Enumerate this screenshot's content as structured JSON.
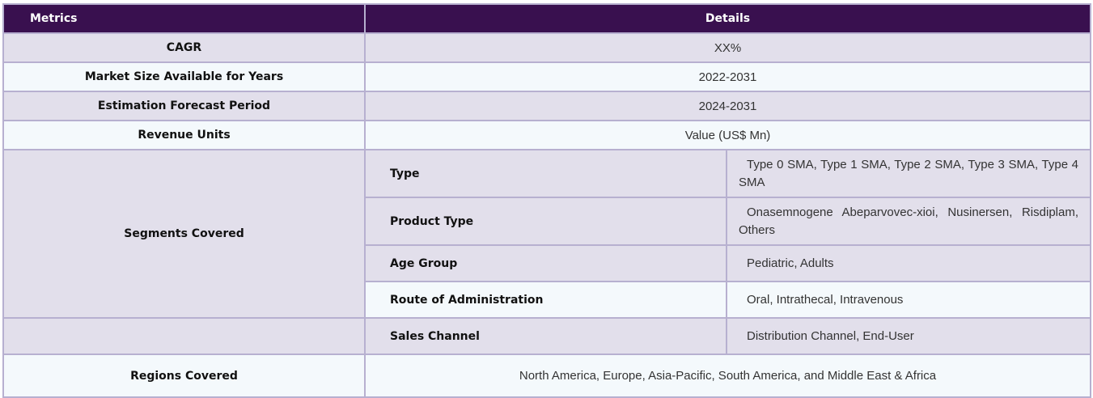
{
  "header": {
    "col1": "Metrics",
    "col2": "Details"
  },
  "rows": [
    {
      "metric": "CAGR",
      "value": "XX%"
    },
    {
      "metric": "Market Size Available for Years",
      "value": "2022-2031"
    },
    {
      "metric": "Estimation Forecast Period",
      "value": "2024-2031"
    },
    {
      "metric": "Revenue Units",
      "value": "Value (US$ Mn)"
    }
  ],
  "segments": {
    "label": "Segments Covered",
    "items": [
      {
        "name": "Type",
        "value": "Type 0 SMA, Type 1 SMA, Type 2 SMA, Type 3 SMA, Type 4 SMA"
      },
      {
        "name": "Product Type",
        "value": "Onasemnogene Abeparvovec-xioi, Nusinersen, Risdiplam, Others"
      },
      {
        "name": "Age Group",
        "value": "Pediatric, Adults"
      },
      {
        "name": "Route of Administration",
        "value": "Oral, Intrathecal, Intravenous"
      },
      {
        "name": "Sales Channel",
        "value": "Distribution Channel, End-User"
      }
    ]
  },
  "regions": {
    "metric": "Regions Covered",
    "value": "North America, Europe, Asia-Pacific, South America, and Middle East & Africa"
  }
}
